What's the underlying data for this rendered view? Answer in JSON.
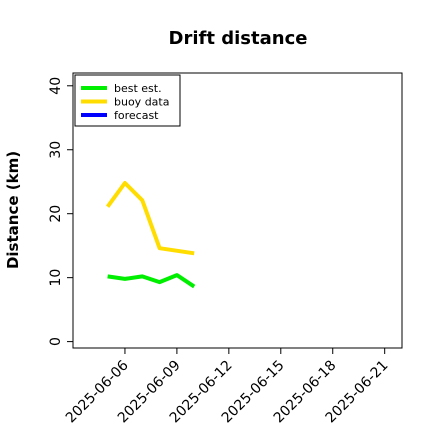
{
  "chart_data": {
    "type": "line",
    "title": "Drift distance",
    "xlabel": "",
    "ylabel": "Distance (km)",
    "x_type": "date",
    "xlim": [
      "2025-06-03",
      "2025-06-22"
    ],
    "ylim": [
      -1,
      42
    ],
    "x_ticks": [
      "2025-06-06",
      "2025-06-09",
      "2025-06-12",
      "2025-06-15",
      "2025-06-18",
      "2025-06-21"
    ],
    "highlight_tick": "2025-06-12",
    "highlight_color": "#228b22",
    "y_ticks": [
      0,
      10,
      20,
      30,
      40
    ],
    "grid": false,
    "legend": "top-left",
    "series": [
      {
        "name": "best est.",
        "color": "#00ee00",
        "x": [
          "2025-06-05",
          "2025-06-06",
          "2025-06-07",
          "2025-06-08",
          "2025-06-09",
          "2025-06-10"
        ],
        "y": [
          10.2,
          9.8,
          10.2,
          9.3,
          10.4,
          8.6
        ]
      },
      {
        "name": "buoy data",
        "color": "#ffdd00",
        "x": [
          "2025-06-05",
          "2025-06-06",
          "2025-06-07",
          "2025-06-08",
          "2025-06-10"
        ],
        "y": [
          21.1,
          24.8,
          22.1,
          14.6,
          13.8
        ]
      },
      {
        "name": "forecast",
        "color": "#0000ff",
        "x": [],
        "y": []
      }
    ]
  }
}
